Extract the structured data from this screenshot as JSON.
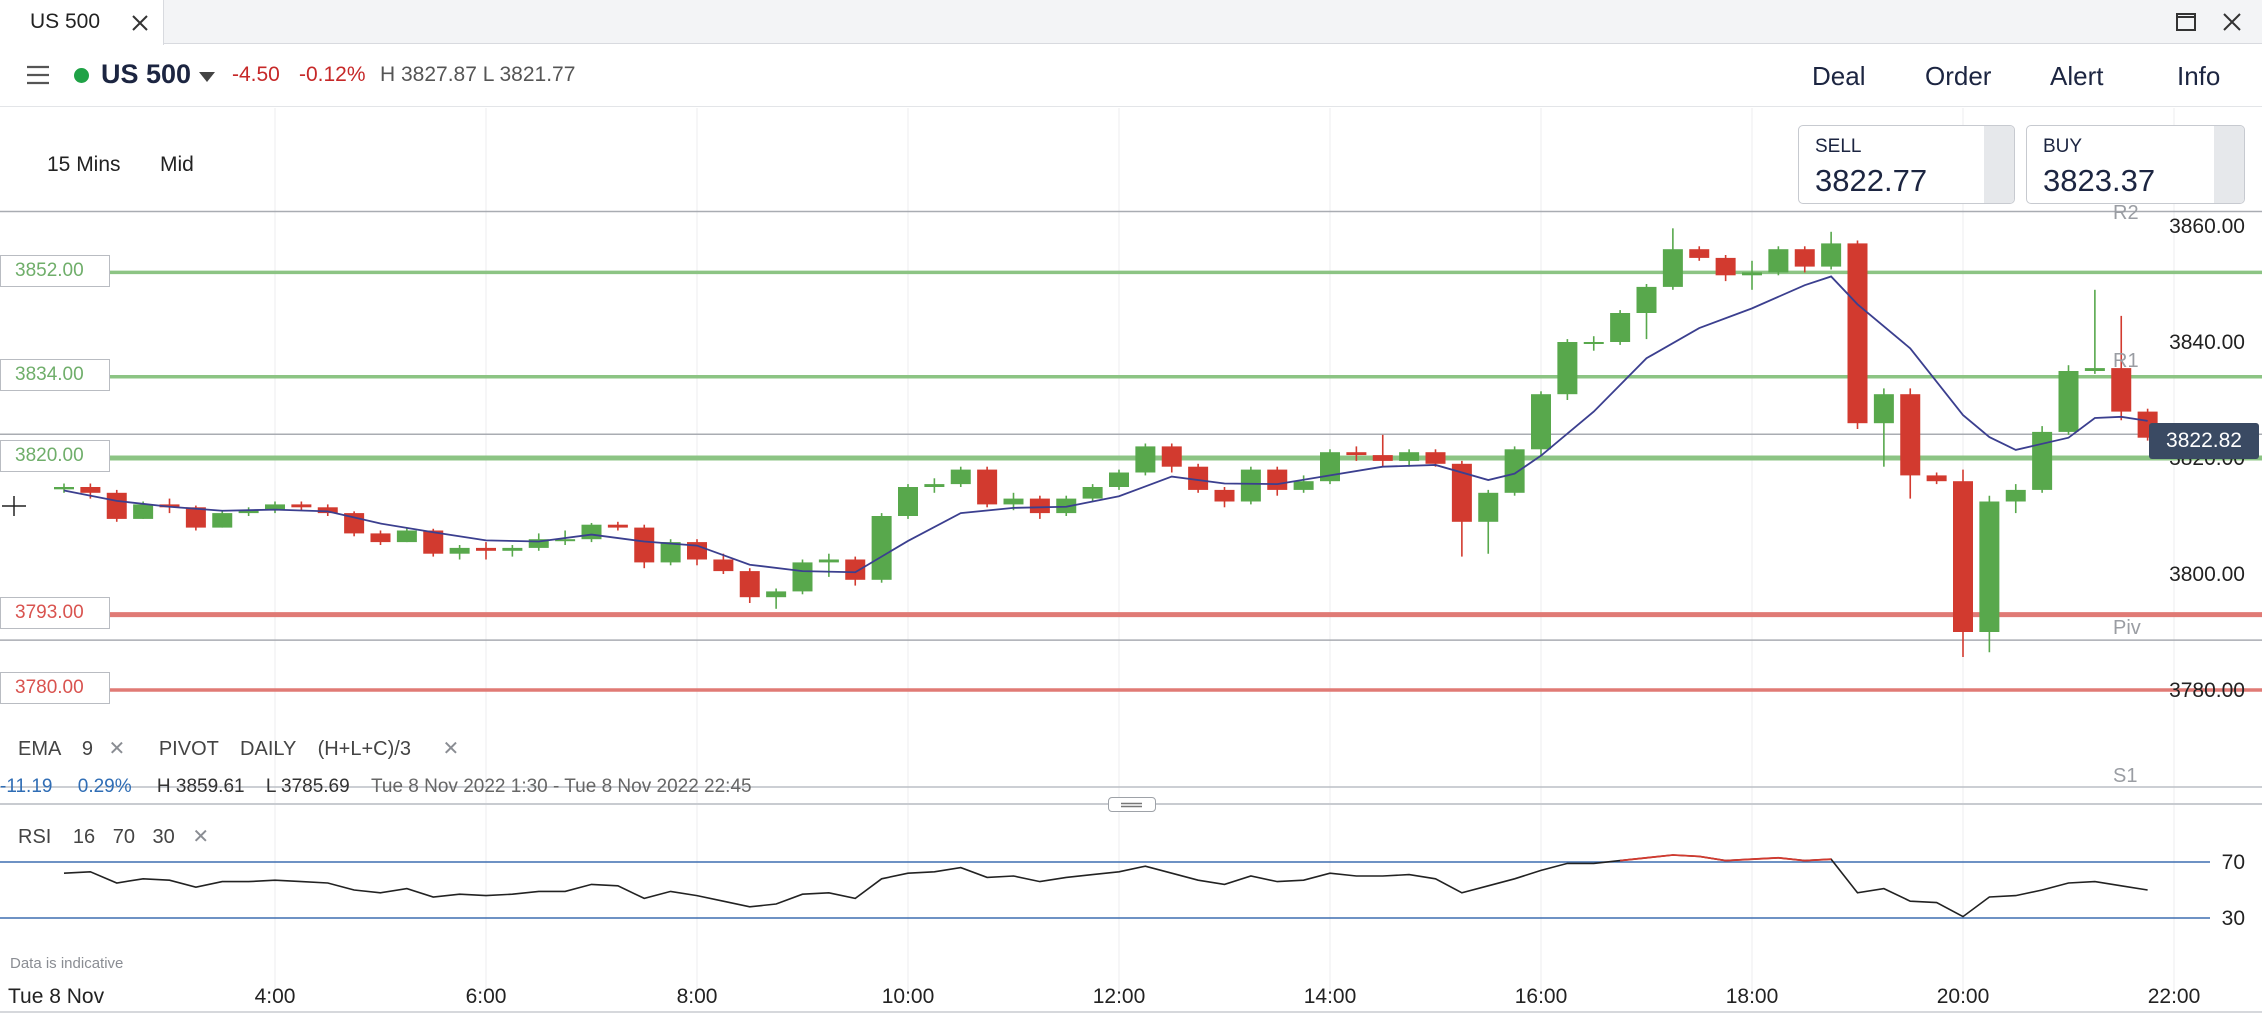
{
  "tab": {
    "title": "US 500"
  },
  "header": {
    "instrument": "US 500",
    "change_abs": "-4.50",
    "change_pct": "-0.12%",
    "high_low": "H 3827.87  L 3821.77",
    "nav": [
      "Deal",
      "Order",
      "Alert",
      "Info"
    ]
  },
  "toolbar": {
    "timeframe": "15 Mins",
    "price_mode": "Mid"
  },
  "quotes": {
    "sell_label": "SELL",
    "sell": "3822.77",
    "buy_label": "BUY",
    "buy": "3823.37"
  },
  "levels": [
    {
      "label": "3852.00",
      "value": 3852.0,
      "color": "#8cc484"
    },
    {
      "label": "3834.00",
      "value": 3834.0,
      "color": "#8cc484"
    },
    {
      "label": "3820.00",
      "value": 3820.0,
      "color": "#8cc484"
    },
    {
      "label": "3793.00",
      "value": 3793.0,
      "color": "#e07a75"
    },
    {
      "label": "3780.00",
      "value": 3780.0,
      "color": "#e07a75"
    }
  ],
  "pivots": [
    {
      "label": "R2",
      "value": 3862.5
    },
    {
      "label": "R1",
      "value": 3824.1
    },
    {
      "label": "Piv",
      "value": 3788.6
    },
    {
      "label": "S1",
      "value": 3763.0
    }
  ],
  "last_price": "3822.82",
  "indicator": {
    "ema_label": "EMA",
    "ema_period": "9",
    "pivot_label": "PIVOT",
    "pivot_period": "DAILY",
    "pivot_formula": "(H+L+C)/3"
  },
  "range": {
    "change": "-11.19",
    "pct": "0.29%",
    "high": "H 3859.61",
    "low": "L 3785.69",
    "period": "Tue 8 Nov 2022 1:30 - Tue 8 Nov 2022 22:45"
  },
  "rsi": {
    "label": "RSI",
    "p1": "16",
    "p2": "70",
    "p3": "30"
  },
  "disclaimer": "Data is indicative",
  "colors": {
    "up": "#58a84c",
    "down": "#d23a2f",
    "ema": "#3b3f8f",
    "rsi": "#222222",
    "rsi_over": "#d23a2f",
    "band": "#3e6fb0"
  },
  "chart_data": {
    "type": "candlestick",
    "date_label": "Tue 8 Nov",
    "x_ticks": [
      "4:00",
      "6:00",
      "8:00",
      "10:00",
      "12:00",
      "14:00",
      "16:00",
      "18:00",
      "20:00",
      "22:00"
    ],
    "x_range": [
      "2:00",
      "22:45"
    ],
    "y_ticks": [
      "3860.00",
      "3840.00",
      "3820.00",
      "3800.00",
      "3780.00"
    ],
    "y_range": [
      3770,
      3862
    ],
    "candles": [
      [
        "2:00",
        3814.6,
        3815.6,
        3814.0,
        3815.0
      ],
      [
        "2:15",
        3815.0,
        3815.6,
        3813.0,
        3814.0
      ],
      [
        "2:30",
        3814.0,
        3814.5,
        3809.0,
        3809.5
      ],
      [
        "2:45",
        3809.5,
        3812.5,
        3809.5,
        3812.0
      ],
      [
        "3:00",
        3812.0,
        3813.0,
        3810.5,
        3811.5
      ],
      [
        "3:15",
        3811.5,
        3811.8,
        3807.5,
        3808.0
      ],
      [
        "3:30",
        3808.0,
        3811.0,
        3808.0,
        3810.5
      ],
      [
        "3:45",
        3810.5,
        3811.5,
        3810.0,
        3811.0
      ],
      [
        "4:00",
        3811.0,
        3812.5,
        3810.5,
        3812.0
      ],
      [
        "4:15",
        3812.0,
        3812.5,
        3811.0,
        3811.5
      ],
      [
        "4:30",
        3811.5,
        3812.0,
        3810.0,
        3810.5
      ],
      [
        "4:45",
        3810.5,
        3810.8,
        3806.5,
        3807.0
      ],
      [
        "5:00",
        3807.0,
        3807.5,
        3805.0,
        3805.5
      ],
      [
        "5:15",
        3805.5,
        3808.0,
        3805.5,
        3807.5
      ],
      [
        "5:30",
        3807.5,
        3807.8,
        3803.0,
        3803.5
      ],
      [
        "5:45",
        3803.5,
        3805.0,
        3802.5,
        3804.5
      ],
      [
        "6:00",
        3804.5,
        3805.5,
        3802.5,
        3804.0
      ],
      [
        "6:15",
        3804.0,
        3805.0,
        3803.0,
        3804.5
      ],
      [
        "6:30",
        3804.5,
        3807.0,
        3804.0,
        3806.0
      ],
      [
        "6:45",
        3806.0,
        3807.5,
        3805.0,
        3806.0
      ],
      [
        "7:00",
        3806.0,
        3808.8,
        3805.5,
        3808.5
      ],
      [
        "7:15",
        3808.5,
        3809.0,
        3807.5,
        3808.0
      ],
      [
        "7:30",
        3808.0,
        3808.5,
        3801.0,
        3802.0
      ],
      [
        "7:45",
        3802.0,
        3806.0,
        3801.5,
        3805.5
      ],
      [
        "8:00",
        3805.5,
        3806.0,
        3801.5,
        3802.5
      ],
      [
        "8:15",
        3802.5,
        3803.5,
        3800.0,
        3800.5
      ],
      [
        "8:30",
        3800.5,
        3801.0,
        3795.0,
        3796.0
      ],
      [
        "8:45",
        3796.0,
        3797.5,
        3794.0,
        3797.0
      ],
      [
        "9:00",
        3797.0,
        3802.5,
        3796.5,
        3802.0
      ],
      [
        "9:15",
        3802.0,
        3803.5,
        3799.5,
        3802.5
      ],
      [
        "9:30",
        3802.5,
        3803.0,
        3798.0,
        3799.0
      ],
      [
        "9:45",
        3799.0,
        3810.5,
        3798.5,
        3810.0
      ],
      [
        "10:00",
        3810.0,
        3815.5,
        3809.5,
        3815.0
      ],
      [
        "10:15",
        3815.0,
        3816.5,
        3814.0,
        3815.5
      ],
      [
        "10:30",
        3815.5,
        3818.5,
        3815.0,
        3818.0
      ],
      [
        "10:45",
        3818.0,
        3818.5,
        3811.5,
        3812.0
      ],
      [
        "11:00",
        3812.0,
        3814.0,
        3811.0,
        3813.0
      ],
      [
        "11:15",
        3813.0,
        3813.5,
        3809.5,
        3810.5
      ],
      [
        "11:30",
        3810.5,
        3813.5,
        3810.0,
        3813.0
      ],
      [
        "11:45",
        3813.0,
        3815.5,
        3812.5,
        3815.0
      ],
      [
        "12:00",
        3815.0,
        3818.0,
        3814.5,
        3817.5
      ],
      [
        "12:15",
        3817.5,
        3822.5,
        3817.0,
        3822.0
      ],
      [
        "12:30",
        3822.0,
        3822.5,
        3817.5,
        3818.5
      ],
      [
        "12:45",
        3818.5,
        3819.0,
        3814.0,
        3814.5
      ],
      [
        "13:00",
        3814.5,
        3815.0,
        3811.5,
        3812.5
      ],
      [
        "13:15",
        3812.5,
        3818.5,
        3812.0,
        3818.0
      ],
      [
        "13:30",
        3818.0,
        3818.5,
        3813.5,
        3814.5
      ],
      [
        "13:45",
        3814.5,
        3817.0,
        3814.0,
        3816.0
      ],
      [
        "14:00",
        3816.0,
        3821.5,
        3815.5,
        3821.0
      ],
      [
        "14:15",
        3821.0,
        3822.0,
        3819.5,
        3820.5
      ],
      [
        "14:30",
        3820.5,
        3824.0,
        3818.5,
        3819.5
      ],
      [
        "14:45",
        3819.5,
        3821.5,
        3818.5,
        3821.0
      ],
      [
        "15:00",
        3821.0,
        3821.5,
        3818.5,
        3819.0
      ],
      [
        "15:15",
        3819.0,
        3819.5,
        3803.0,
        3809.0
      ],
      [
        "15:30",
        3809.0,
        3814.5,
        3803.5,
        3814.0
      ],
      [
        "15:45",
        3814.0,
        3822.0,
        3813.5,
        3821.5
      ],
      [
        "16:00",
        3821.5,
        3831.5,
        3820.5,
        3831.0
      ],
      [
        "16:15",
        3831.0,
        3840.5,
        3830.0,
        3840.0
      ],
      [
        "16:30",
        3840.0,
        3841.0,
        3838.5,
        3840.0
      ],
      [
        "16:45",
        3840.0,
        3845.5,
        3839.5,
        3845.0
      ],
      [
        "17:00",
        3845.0,
        3850.0,
        3840.5,
        3849.5
      ],
      [
        "17:15",
        3849.5,
        3859.6,
        3849.0,
        3856.0
      ],
      [
        "17:30",
        3856.0,
        3856.5,
        3854.0,
        3854.5
      ],
      [
        "17:45",
        3854.5,
        3855.0,
        3850.5,
        3851.5
      ],
      [
        "18:00",
        3851.5,
        3854.0,
        3849.0,
        3852.0
      ],
      [
        "18:15",
        3852.0,
        3856.5,
        3851.5,
        3856.0
      ],
      [
        "18:30",
        3856.0,
        3856.5,
        3852.0,
        3853.0
      ],
      [
        "18:45",
        3853.0,
        3859.0,
        3852.5,
        3857.0
      ],
      [
        "19:00",
        3857.0,
        3857.5,
        3825.0,
        3826.0
      ],
      [
        "19:15",
        3826.0,
        3832.0,
        3818.5,
        3831.0
      ],
      [
        "19:30",
        3831.0,
        3832.0,
        3813.0,
        3817.0
      ],
      [
        "19:45",
        3817.0,
        3817.5,
        3815.5,
        3816.0
      ],
      [
        "20:00",
        3816.0,
        3818.0,
        3785.7,
        3790.0
      ],
      [
        "20:15",
        3790.0,
        3813.5,
        3786.5,
        3812.5
      ],
      [
        "20:30",
        3812.5,
        3815.5,
        3810.5,
        3814.5
      ],
      [
        "20:45",
        3814.5,
        3825.5,
        3814.0,
        3824.5
      ],
      [
        "21:00",
        3824.5,
        3836.0,
        3824.0,
        3835.0
      ],
      [
        "21:15",
        3835.0,
        3849.0,
        3834.5,
        3835.5
      ],
      [
        "21:30",
        3835.5,
        3844.5,
        3826.5,
        3828.0
      ],
      [
        "21:45",
        3828.0,
        3828.5,
        3823.0,
        3823.5
      ]
    ],
    "ema": [
      [
        "2:00",
        3814.4
      ],
      [
        "2:30",
        3812.6
      ],
      [
        "3:00",
        3811.6
      ],
      [
        "3:30",
        3810.9
      ],
      [
        "4:00",
        3811.1
      ],
      [
        "4:30",
        3810.8
      ],
      [
        "5:00",
        3808.7
      ],
      [
        "5:30",
        3807.2
      ],
      [
        "6:00",
        3805.8
      ],
      [
        "6:30",
        3805.6
      ],
      [
        "7:00",
        3806.8
      ],
      [
        "7:30",
        3805.6
      ],
      [
        "8:00",
        3804.9
      ],
      [
        "8:30",
        3801.6
      ],
      [
        "9:00",
        3800.5
      ],
      [
        "9:30",
        3800.3
      ],
      [
        "10:00",
        3805.7
      ],
      [
        "10:30",
        3810.5
      ],
      [
        "11:00",
        3811.4
      ],
      [
        "11:30",
        3811.6
      ],
      [
        "12:00",
        3813.4
      ],
      [
        "12:30",
        3816.8
      ],
      [
        "13:00",
        3815.6
      ],
      [
        "13:30",
        3815.5
      ],
      [
        "14:00",
        3817.0
      ],
      [
        "14:30",
        3818.5
      ],
      [
        "15:00",
        3818.8
      ],
      [
        "15:30",
        3816.2
      ],
      [
        "15:45",
        3817.3
      ],
      [
        "16:00",
        3820.4
      ],
      [
        "16:30",
        3828.0
      ],
      [
        "17:00",
        3837.2
      ],
      [
        "17:30",
        3842.4
      ],
      [
        "18:00",
        3845.8
      ],
      [
        "18:30",
        3849.8
      ],
      [
        "18:45",
        3851.3
      ],
      [
        "19:00",
        3846.5
      ],
      [
        "19:30",
        3838.9
      ],
      [
        "20:00",
        3827.4
      ],
      [
        "20:15",
        3823.6
      ],
      [
        "20:30",
        3821.4
      ],
      [
        "21:00",
        3823.5
      ],
      [
        "21:15",
        3826.9
      ],
      [
        "21:30",
        3827.1
      ],
      [
        "21:45",
        3826.4
      ]
    ],
    "rsi_ticks": [
      "70",
      "30"
    ],
    "rsi_range": [
      10,
      90
    ],
    "rsi": [
      [
        "2:00",
        62
      ],
      [
        "2:15",
        63
      ],
      [
        "2:30",
        55
      ],
      [
        "2:45",
        58
      ],
      [
        "3:00",
        57
      ],
      [
        "3:15",
        52
      ],
      [
        "3:30",
        56
      ],
      [
        "3:45",
        56
      ],
      [
        "4:00",
        57
      ],
      [
        "4:15",
        56
      ],
      [
        "4:30",
        55
      ],
      [
        "4:45",
        50
      ],
      [
        "5:00",
        48
      ],
      [
        "5:15",
        51
      ],
      [
        "5:30",
        45
      ],
      [
        "5:45",
        47
      ],
      [
        "6:00",
        46
      ],
      [
        "6:15",
        47
      ],
      [
        "6:30",
        49
      ],
      [
        "6:45",
        49
      ],
      [
        "7:00",
        54
      ],
      [
        "7:15",
        53
      ],
      [
        "7:30",
        44
      ],
      [
        "7:45",
        49
      ],
      [
        "8:00",
        46
      ],
      [
        "8:15",
        42
      ],
      [
        "8:30",
        38
      ],
      [
        "8:45",
        40
      ],
      [
        "9:00",
        47
      ],
      [
        "9:15",
        48
      ],
      [
        "9:30",
        44
      ],
      [
        "9:45",
        58
      ],
      [
        "10:00",
        62
      ],
      [
        "10:15",
        63
      ],
      [
        "10:30",
        66
      ],
      [
        "10:45",
        59
      ],
      [
        "11:00",
        60
      ],
      [
        "11:15",
        56
      ],
      [
        "11:30",
        59
      ],
      [
        "11:45",
        61
      ],
      [
        "12:00",
        63
      ],
      [
        "12:15",
        67
      ],
      [
        "12:30",
        62
      ],
      [
        "12:45",
        57
      ],
      [
        "13:00",
        54
      ],
      [
        "13:15",
        60
      ],
      [
        "13:30",
        56
      ],
      [
        "13:45",
        57
      ],
      [
        "14:00",
        62
      ],
      [
        "14:15",
        60
      ],
      [
        "14:30",
        60
      ],
      [
        "14:45",
        61
      ],
      [
        "15:00",
        58
      ],
      [
        "15:15",
        48
      ],
      [
        "15:30",
        53
      ],
      [
        "15:45",
        58
      ],
      [
        "16:00",
        64
      ],
      [
        "16:15",
        69
      ],
      [
        "16:30",
        69
      ],
      [
        "16:45",
        71
      ],
      [
        "17:00",
        73
      ],
      [
        "17:15",
        75
      ],
      [
        "17:30",
        74
      ],
      [
        "17:45",
        71
      ],
      [
        "18:00",
        72
      ],
      [
        "18:15",
        73
      ],
      [
        "18:30",
        71
      ],
      [
        "18:45",
        72
      ],
      [
        "19:00",
        48
      ],
      [
        "19:15",
        51
      ],
      [
        "19:30",
        42
      ],
      [
        "19:45",
        41
      ],
      [
        "20:00",
        31
      ],
      [
        "20:15",
        45
      ],
      [
        "20:30",
        46
      ],
      [
        "20:45",
        50
      ],
      [
        "21:00",
        55
      ],
      [
        "21:15",
        56
      ],
      [
        "21:30",
        53
      ],
      [
        "21:45",
        50
      ]
    ]
  }
}
